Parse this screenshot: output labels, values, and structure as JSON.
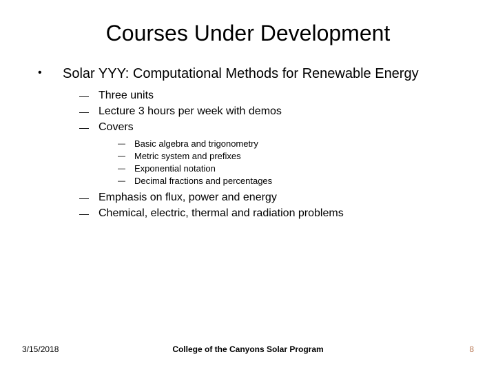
{
  "title": "Courses Under Development",
  "main_bullet": "Solar YYY: Computational Methods for Renewable Energy",
  "sub": {
    "a": "Three units",
    "b": "Lecture 3 hours per week with demos",
    "c": "Covers",
    "d": "Emphasis on flux, power and energy",
    "e": "Chemical, electric, thermal and radiation problems"
  },
  "covers": {
    "a": "Basic algebra and  trigonometry",
    "b": "Metric system and prefixes",
    "c": "Exponential notation",
    "d": "Decimal fractions and percentages"
  },
  "footer": {
    "date": "3/15/2018",
    "center": "College of the Canyons Solar Program",
    "page": "8"
  },
  "glyph": {
    "dot": "•",
    "dash": "—"
  }
}
